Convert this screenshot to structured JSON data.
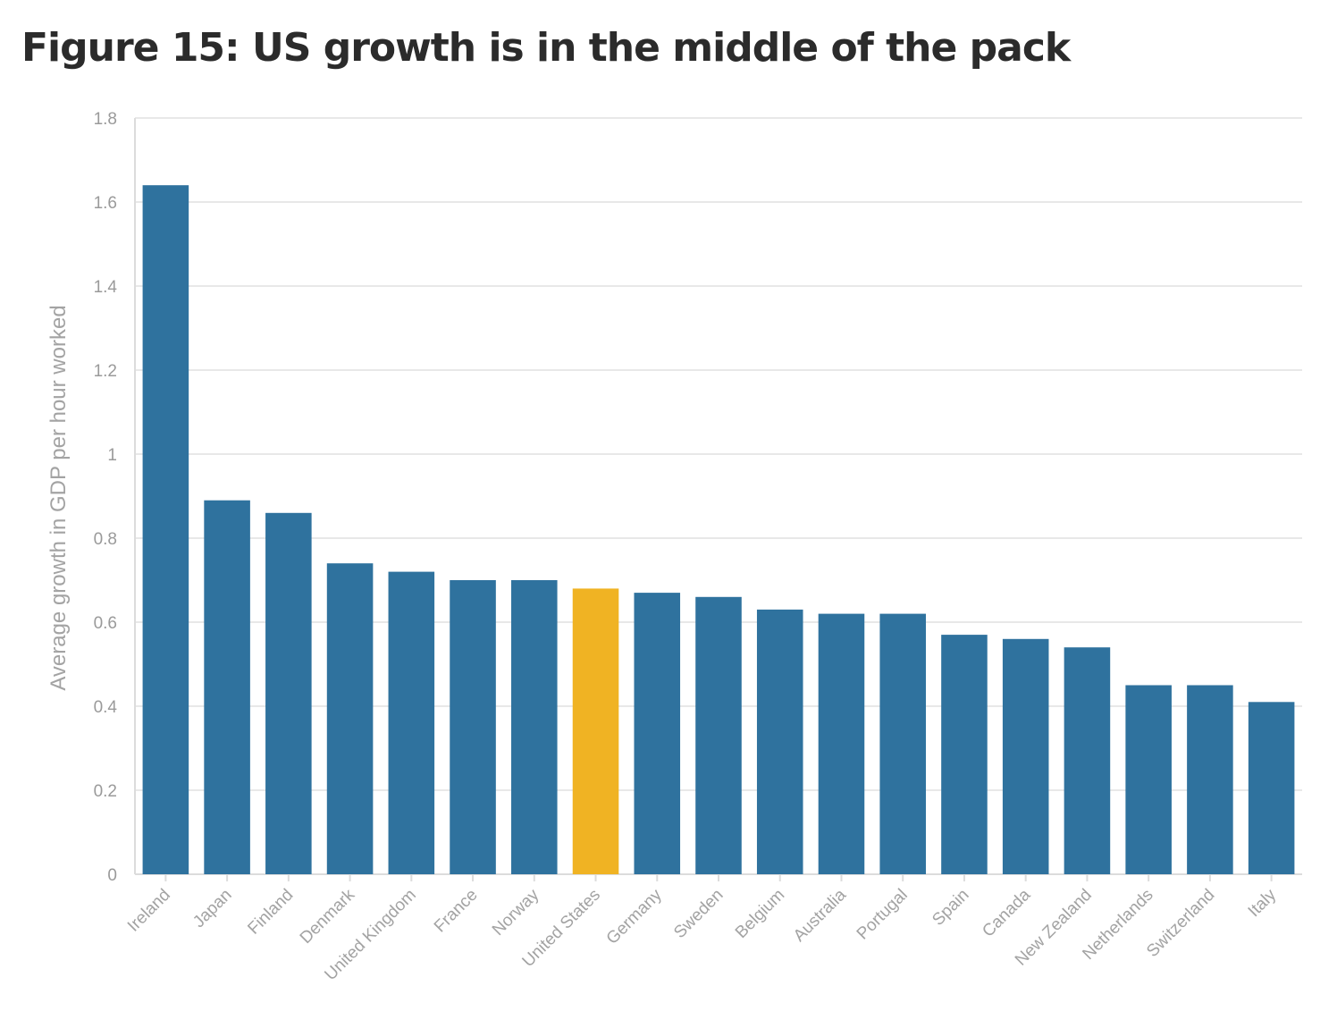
{
  "title": "Figure 15: US growth is in the middle of the pack",
  "colors": {
    "bar": "#2f729e",
    "highlight": "#f0b323",
    "grid": "#e8e8e8",
    "axis": "#dcdcdc"
  },
  "chart_data": {
    "type": "bar",
    "title": "Figure 15: US growth is in the middle of the pack",
    "xlabel": "",
    "ylabel": "Average growth in GDP per hour worked",
    "ylim": [
      0,
      1.8
    ],
    "yticks": [
      "0",
      "0.2",
      "0.4",
      "0.6",
      "0.8",
      "1",
      "1.2",
      "1.4",
      "1.6",
      "1.8"
    ],
    "grid": true,
    "highlight_category": "United States",
    "categories": [
      "Ireland",
      "Japan",
      "Finland",
      "Denmark",
      "United Kingdom",
      "France",
      "Norway",
      "United States",
      "Germany",
      "Sweden",
      "Belgium",
      "Australia",
      "Portugal",
      "Spain",
      "Canada",
      "New Zealand",
      "Netherlands",
      "Switzerland",
      "Italy"
    ],
    "values": [
      1.64,
      0.89,
      0.86,
      0.74,
      0.72,
      0.7,
      0.7,
      0.68,
      0.67,
      0.66,
      0.63,
      0.62,
      0.62,
      0.57,
      0.56,
      0.54,
      0.45,
      0.45,
      0.41
    ]
  }
}
